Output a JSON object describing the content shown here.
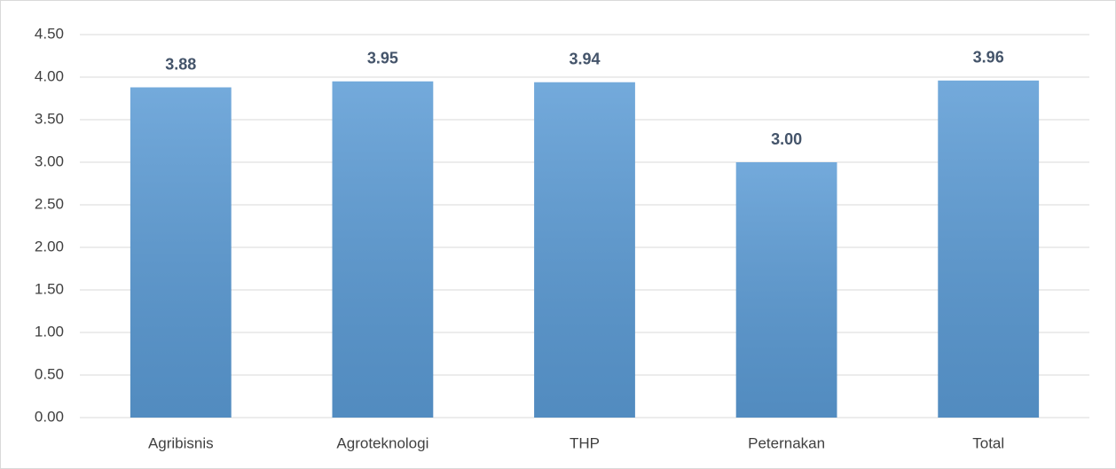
{
  "chart_data": {
    "type": "bar",
    "categories": [
      "Agribisnis",
      "Agroteknologi",
      "THP",
      "Peternakan",
      "Total"
    ],
    "values": [
      3.88,
      3.95,
      3.94,
      3.0,
      3.96
    ],
    "value_labels": [
      "3.88",
      "3.95",
      "3.94",
      "3.00",
      "3.96"
    ],
    "color": "#5b9bd5",
    "ylim": [
      0,
      4.5
    ],
    "yticks": [
      {
        "value": 0,
        "label": "0.00"
      },
      {
        "value": 0.5,
        "label": "0.50"
      },
      {
        "value": 1,
        "label": "1.00"
      },
      {
        "value": 1.5,
        "label": "1.50"
      },
      {
        "value": 2,
        "label": "2.00"
      },
      {
        "value": 2.5,
        "label": "2.50"
      },
      {
        "value": 3,
        "label": "3.00"
      },
      {
        "value": 3.5,
        "label": "3.50"
      },
      {
        "value": 4,
        "label": "4.00"
      },
      {
        "value": 4.5,
        "label": "4.50"
      }
    ],
    "grid": true
  }
}
